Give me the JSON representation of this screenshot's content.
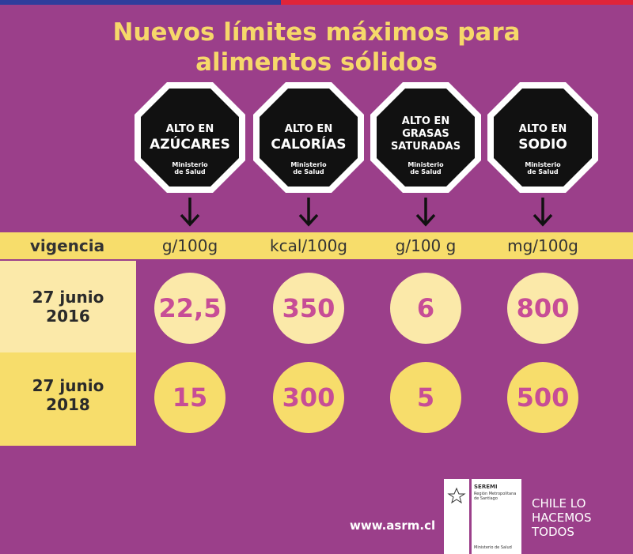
{
  "title": {
    "line1": "Nuevos límites máximos para",
    "line2": "alimentos sólidos"
  },
  "seals": [
    {
      "line1": "ALTO EN",
      "line2": "AZÚCARES",
      "line3": "",
      "ministry1": "Ministerio",
      "ministry2": "de Salud"
    },
    {
      "line1": "ALTO EN",
      "line2": "CALORÍAS",
      "line3": "",
      "ministry1": "Ministerio",
      "ministry2": "de Salud"
    },
    {
      "line1": "ALTO EN",
      "line2": "GRASAS",
      "line3": "SATURADAS",
      "ministry1": "Ministerio",
      "ministry2": "de Salud"
    },
    {
      "line1": "ALTO EN",
      "line2": "SODIO",
      "line3": "",
      "ministry1": "Ministerio",
      "ministry2": "de Salud"
    }
  ],
  "header": {
    "vigencia": "vigencia",
    "units": [
      "g/100g",
      "kcal/100g",
      "g/100 g",
      "mg/100g"
    ]
  },
  "rows": [
    {
      "date1": "27 junio",
      "date2": "2016",
      "values": [
        "22,5",
        "350",
        "6",
        "800"
      ]
    },
    {
      "date1": "27 junio",
      "date2": "2018",
      "values": [
        "15",
        "300",
        "5",
        "500"
      ]
    }
  ],
  "footer": {
    "url": "www.asrm.cl",
    "logo_seremi": "SEREMI",
    "logo_region": "Región Metropolitana de Santiago",
    "logo_ministry": "Ministerio de Salud",
    "slogan1": "CHILE LO",
    "slogan2": "HACEMOS",
    "slogan3": "TODOS"
  },
  "colors": {
    "background": "#9b3f8a",
    "yellow": "#f7dd6b",
    "light_yellow": "#fbe9a9",
    "value_text": "#c74d96",
    "title": "#f6d86a"
  }
}
